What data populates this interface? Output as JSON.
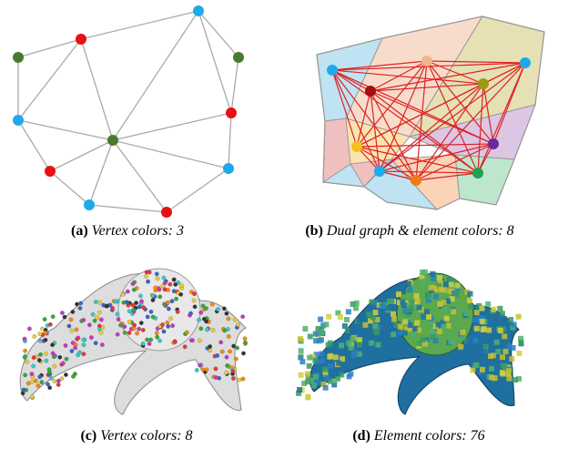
{
  "figures": [
    {
      "label": "(a)",
      "caption": "Vertex colors: 3"
    },
    {
      "label": "(b)",
      "caption": "Dual graph & element colors: 8"
    },
    {
      "label": "(c)",
      "caption": "Vertex colors: 8"
    },
    {
      "label": "(d)",
      "caption": "Element colors: 76"
    }
  ]
}
